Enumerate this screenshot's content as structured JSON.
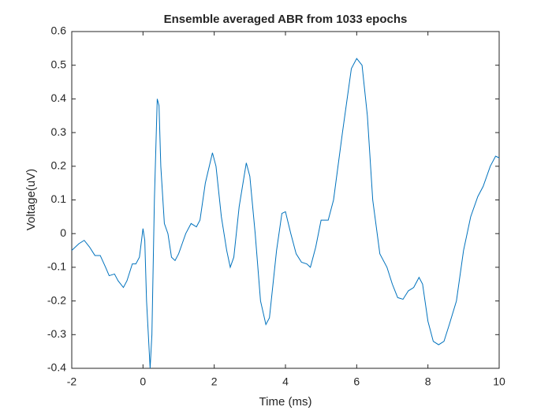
{
  "chart_data": {
    "type": "line",
    "title": "Ensemble averaged ABR from 1033 epochs",
    "x_label": "Time (ms)",
    "y_label": "Voltage(uV)",
    "x": [
      -2,
      -1.8,
      -1.65,
      -1.5,
      -1.35,
      -1.2,
      -1.05,
      -0.95,
      -0.8,
      -0.7,
      -0.55,
      -0.45,
      -0.3,
      -0.2,
      -0.1,
      0,
      0.05,
      0.1,
      0.2,
      0.25,
      0.32,
      0.4,
      0.45,
      0.5,
      0.6,
      0.7,
      0.8,
      0.9,
      1,
      1.1,
      1.2,
      1.35,
      1.5,
      1.6,
      1.75,
      1.95,
      2.05,
      2.2,
      2.35,
      2.45,
      2.55,
      2.7,
      2.9,
      3,
      3.15,
      3.3,
      3.45,
      3.55,
      3.75,
      3.9,
      4,
      4.15,
      4.3,
      4.45,
      4.6,
      4.7,
      4.85,
      5,
      5.2,
      5.35,
      5.6,
      5.85,
      6,
      6.15,
      6.3,
      6.45,
      6.65,
      6.85,
      7,
      7.15,
      7.3,
      7.45,
      7.6,
      7.75,
      7.85,
      8,
      8.15,
      8.3,
      8.45,
      8.6,
      8.8,
      9,
      9.2,
      9.4,
      9.55,
      9.75,
      9.9,
      10
    ],
    "series": [
      {
        "color": "#0072bd",
        "values": [
          -0.05,
          -0.03,
          -0.02,
          -0.04,
          -0.065,
          -0.065,
          -0.1,
          -0.125,
          -0.12,
          -0.14,
          -0.16,
          -0.14,
          -0.09,
          -0.09,
          -0.07,
          0.015,
          -0.02,
          -0.2,
          -0.4,
          -0.3,
          0.1,
          0.4,
          0.38,
          0.2,
          0.03,
          0,
          -0.07,
          -0.08,
          -0.06,
          -0.03,
          0,
          0.03,
          0.02,
          0.04,
          0.15,
          0.24,
          0.2,
          0.05,
          -0.05,
          -0.1,
          -0.07,
          0.08,
          0.21,
          0.17,
          0,
          -0.2,
          -0.27,
          -0.25,
          -0.05,
          0.06,
          0.065,
          0,
          -0.06,
          -0.085,
          -0.09,
          -0.1,
          -0.04,
          0.04,
          0.04,
          0.1,
          0.3,
          0.49,
          0.52,
          0.5,
          0.35,
          0.1,
          -0.06,
          -0.1,
          -0.15,
          -0.19,
          -0.195,
          -0.17,
          -0.16,
          -0.13,
          -0.15,
          -0.26,
          -0.32,
          -0.33,
          -0.32,
          -0.27,
          -0.2,
          -0.05,
          0.05,
          0.11,
          0.14,
          0.2,
          0.23,
          0.225
        ]
      }
    ],
    "xlim": [
      -2,
      10
    ],
    "xticks": [
      -2,
      0,
      2,
      4,
      6,
      8,
      10
    ],
    "ylim": [
      -0.4,
      0.6
    ],
    "yticks": [
      -0.4,
      -0.3,
      -0.2,
      -0.1,
      0,
      0.1,
      0.2,
      0.3,
      0.4,
      0.5,
      0.6
    ]
  }
}
